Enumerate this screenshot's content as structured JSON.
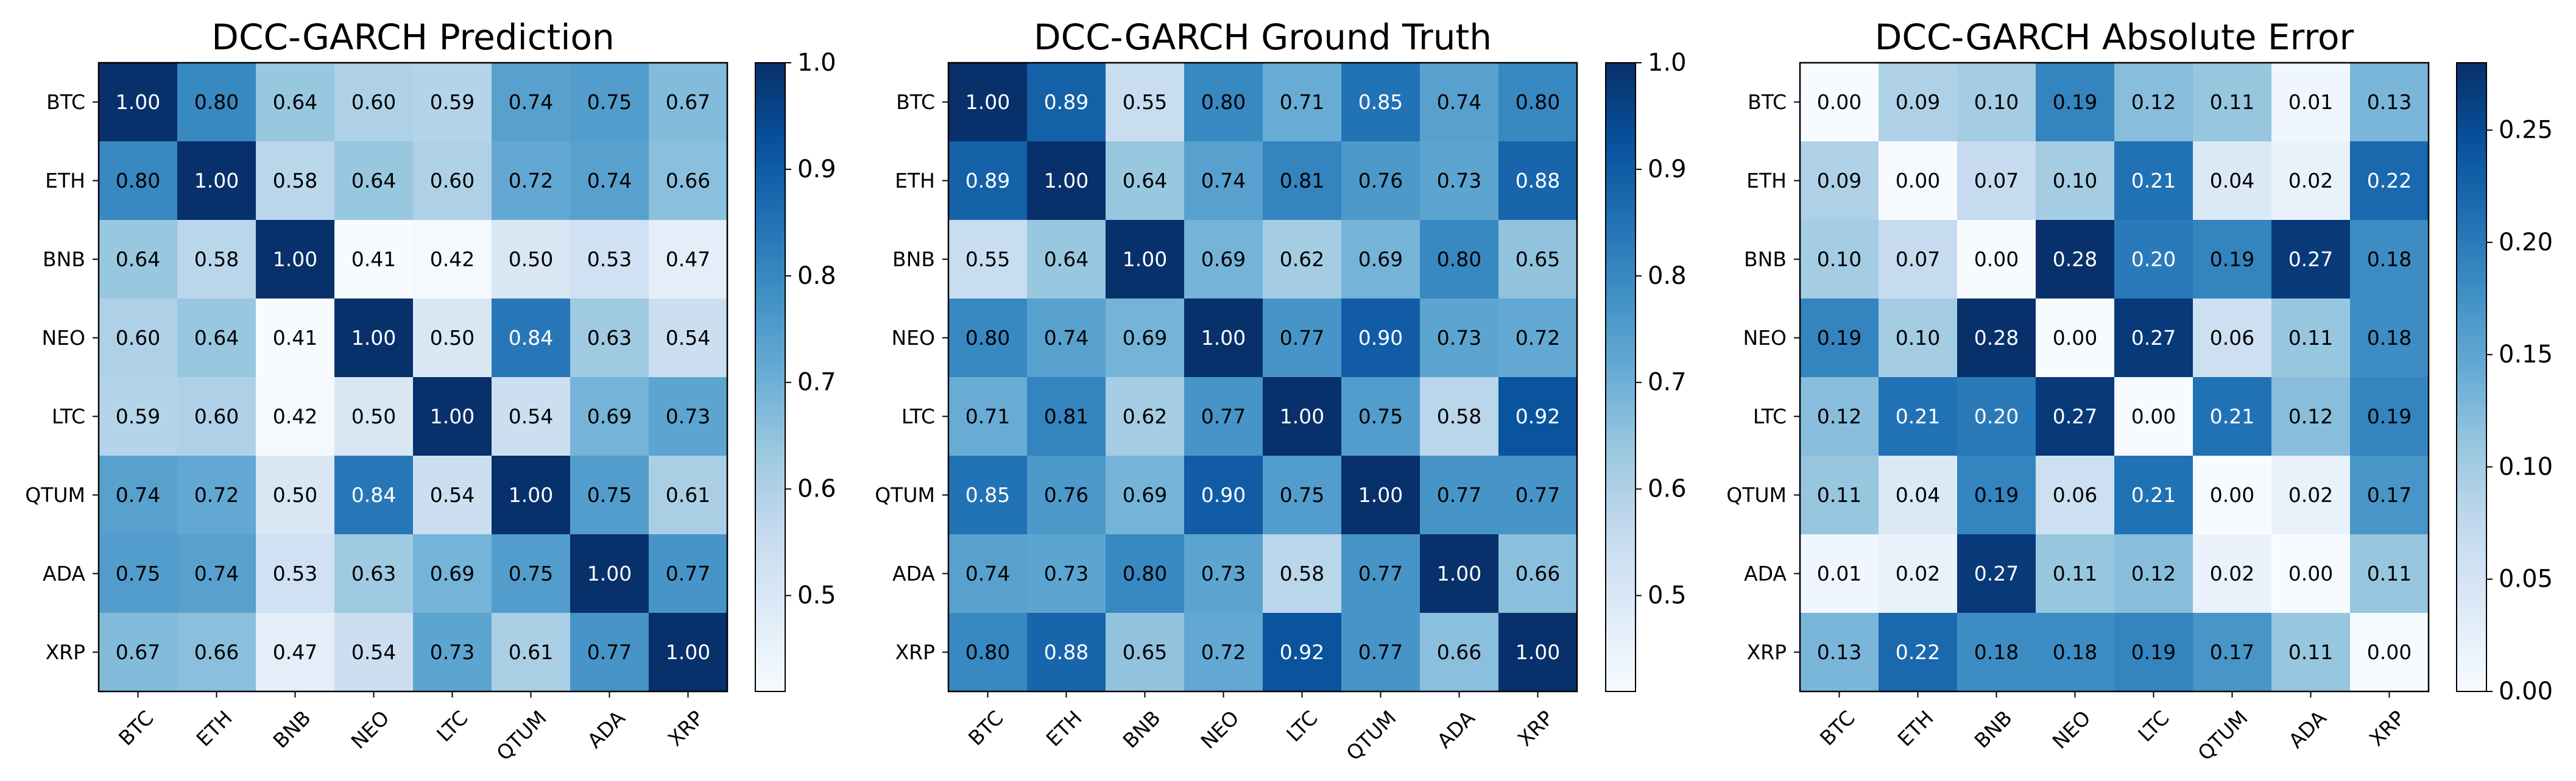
{
  "labels": [
    "BTC",
    "ETH",
    "BNB",
    "NEO",
    "LTC",
    "QTUM",
    "ADA",
    "XRP"
  ],
  "chart_data": [
    {
      "type": "heatmap",
      "title": "DCC-GARCH Prediction",
      "xlabel": "",
      "ylabel": "",
      "colormap": "Blues",
      "vmin": 0.41,
      "vmax": 1.0,
      "colorbar_ticks": [
        0.5,
        0.6,
        0.7,
        0.8,
        0.9,
        1.0
      ],
      "colorbar_tick_labels": [
        "0.5",
        "0.6",
        "0.7",
        "0.8",
        "0.9",
        "1.0"
      ],
      "values": [
        [
          1.0,
          0.8,
          0.64,
          0.6,
          0.59,
          0.74,
          0.75,
          0.67
        ],
        [
          0.8,
          1.0,
          0.58,
          0.64,
          0.6,
          0.72,
          0.74,
          0.66
        ],
        [
          0.64,
          0.58,
          1.0,
          0.41,
          0.42,
          0.5,
          0.53,
          0.47
        ],
        [
          0.6,
          0.64,
          0.41,
          1.0,
          0.5,
          0.84,
          0.63,
          0.54
        ],
        [
          0.59,
          0.6,
          0.42,
          0.5,
          1.0,
          0.54,
          0.69,
          0.73
        ],
        [
          0.74,
          0.72,
          0.5,
          0.84,
          0.54,
          1.0,
          0.75,
          0.61
        ],
        [
          0.75,
          0.74,
          0.53,
          0.63,
          0.69,
          0.75,
          1.0,
          0.77
        ],
        [
          0.67,
          0.66,
          0.47,
          0.54,
          0.73,
          0.61,
          0.77,
          1.0
        ]
      ]
    },
    {
      "type": "heatmap",
      "title": "DCC-GARCH Ground Truth",
      "xlabel": "",
      "ylabel": "",
      "colormap": "Blues",
      "vmin": 0.41,
      "vmax": 1.0,
      "colorbar_ticks": [
        0.5,
        0.6,
        0.7,
        0.8,
        0.9,
        1.0
      ],
      "colorbar_tick_labels": [
        "0.5",
        "0.6",
        "0.7",
        "0.8",
        "0.9",
        "1.0"
      ],
      "values": [
        [
          1.0,
          0.89,
          0.55,
          0.8,
          0.71,
          0.85,
          0.74,
          0.8
        ],
        [
          0.89,
          1.0,
          0.64,
          0.74,
          0.81,
          0.76,
          0.73,
          0.88
        ],
        [
          0.55,
          0.64,
          1.0,
          0.69,
          0.62,
          0.69,
          0.8,
          0.65
        ],
        [
          0.8,
          0.74,
          0.69,
          1.0,
          0.77,
          0.9,
          0.73,
          0.72
        ],
        [
          0.71,
          0.81,
          0.62,
          0.77,
          1.0,
          0.75,
          0.58,
          0.92
        ],
        [
          0.85,
          0.76,
          0.69,
          0.9,
          0.75,
          1.0,
          0.77,
          0.77
        ],
        [
          0.74,
          0.73,
          0.8,
          0.73,
          0.58,
          0.77,
          1.0,
          0.66
        ],
        [
          0.8,
          0.88,
          0.65,
          0.72,
          0.92,
          0.77,
          0.66,
          1.0
        ]
      ]
    },
    {
      "type": "heatmap",
      "title": "DCC-GARCH Absolute Error",
      "xlabel": "",
      "ylabel": "",
      "colormap": "Blues",
      "vmin": 0.0,
      "vmax": 0.28,
      "colorbar_ticks": [
        0.0,
        0.05,
        0.1,
        0.15,
        0.2,
        0.25
      ],
      "colorbar_tick_labels": [
        "0.00",
        "0.05",
        "0.10",
        "0.15",
        "0.20",
        "0.25"
      ],
      "values": [
        [
          0.0,
          0.09,
          0.1,
          0.19,
          0.12,
          0.11,
          0.01,
          0.13
        ],
        [
          0.09,
          0.0,
          0.07,
          0.1,
          0.21,
          0.04,
          0.02,
          0.22
        ],
        [
          0.1,
          0.07,
          0.0,
          0.28,
          0.2,
          0.19,
          0.27,
          0.18
        ],
        [
          0.19,
          0.1,
          0.28,
          0.0,
          0.27,
          0.06,
          0.11,
          0.18
        ],
        [
          0.12,
          0.21,
          0.2,
          0.27,
          0.0,
          0.21,
          0.12,
          0.19
        ],
        [
          0.11,
          0.04,
          0.19,
          0.06,
          0.21,
          0.0,
          0.02,
          0.17
        ],
        [
          0.01,
          0.02,
          0.27,
          0.11,
          0.12,
          0.02,
          0.0,
          0.11
        ],
        [
          0.13,
          0.22,
          0.18,
          0.18,
          0.19,
          0.17,
          0.11,
          0.0
        ]
      ]
    }
  ]
}
